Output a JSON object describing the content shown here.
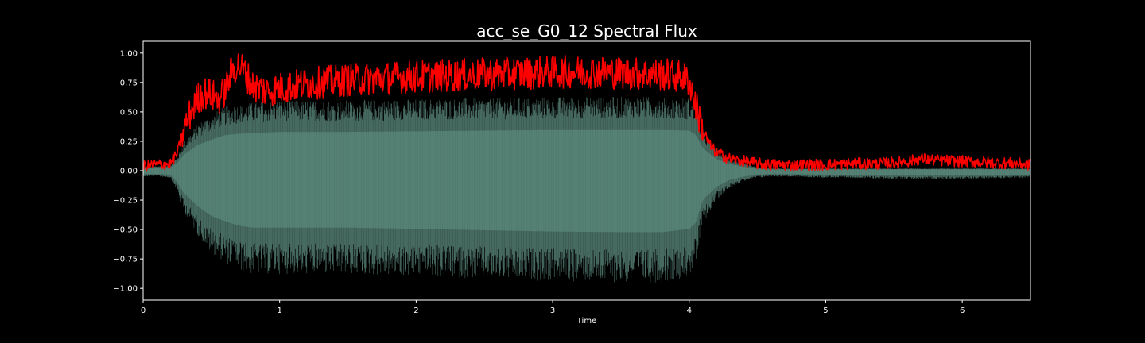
{
  "chart_data": {
    "type": "line",
    "title": "acc_se_G0_12 Spectral Flux",
    "xlabel": "Time",
    "ylabel": "",
    "xlim": [
      0,
      6.5
    ],
    "ylim": [
      -1.1,
      1.1
    ],
    "x_ticks": [
      0,
      1,
      2,
      3,
      4,
      5,
      6
    ],
    "x_tick_labels": [
      "0",
      "1",
      "2",
      "3",
      "4",
      "5",
      "6"
    ],
    "y_ticks": [
      1.0,
      0.75,
      0.5,
      0.25,
      0.0,
      -0.25,
      -0.5,
      -0.75,
      -1.0
    ],
    "y_tick_labels": [
      "1.00",
      "0.75",
      "0.50",
      "0.25",
      "0.00",
      "−0.25",
      "−0.50",
      "−0.75",
      "−1.00"
    ],
    "grid": false,
    "colors": {
      "background": "#000000",
      "waveform": "#3e5c52",
      "waveform_peaks": "#5e8c80",
      "flux": "#ff0000",
      "axes": "#ffffff"
    },
    "series": [
      {
        "kind": "waveform-envelope",
        "x": [
          0,
          0.1,
          0.2,
          0.25,
          0.3,
          0.4,
          0.5,
          0.6,
          0.7,
          0.8,
          0.9,
          1.0,
          1.2,
          1.5,
          2.0,
          2.5,
          3.0,
          3.5,
          3.8,
          4.0,
          4.05,
          4.1,
          4.2,
          4.3,
          4.4,
          4.5,
          4.6,
          5.0,
          5.5,
          6.0,
          6.5
        ],
        "y_upper": [
          0.04,
          0.04,
          0.05,
          0.12,
          0.25,
          0.4,
          0.48,
          0.55,
          0.57,
          0.58,
          0.59,
          0.6,
          0.6,
          0.6,
          0.61,
          0.62,
          0.63,
          0.63,
          0.63,
          0.62,
          0.55,
          0.35,
          0.18,
          0.1,
          0.06,
          0.03,
          0.02,
          0.02,
          0.02,
          0.02,
          0.02
        ],
        "y_lower": [
          -0.05,
          -0.05,
          -0.06,
          -0.18,
          -0.35,
          -0.55,
          -0.7,
          -0.78,
          -0.85,
          -0.88,
          -0.88,
          -0.88,
          -0.88,
          -0.88,
          -0.9,
          -0.92,
          -0.94,
          -0.95,
          -0.95,
          -0.9,
          -0.8,
          -0.45,
          -0.25,
          -0.14,
          -0.09,
          -0.06,
          -0.05,
          -0.06,
          -0.07,
          -0.07,
          -0.06
        ]
      },
      {
        "kind": "spectral-flux",
        "x": [
          0,
          0.1,
          0.2,
          0.25,
          0.3,
          0.35,
          0.4,
          0.45,
          0.5,
          0.55,
          0.6,
          0.65,
          0.7,
          0.75,
          0.8,
          0.85,
          0.9,
          1.0,
          1.1,
          1.2,
          1.3,
          1.5,
          1.8,
          2.0,
          2.3,
          2.5,
          2.8,
          3.0,
          3.3,
          3.5,
          3.8,
          3.95,
          4.0,
          4.05,
          4.1,
          4.15,
          4.2,
          4.3,
          4.4,
          4.5,
          4.6,
          4.8,
          5.0,
          5.2,
          5.4,
          5.6,
          5.7,
          5.8,
          6.0,
          6.2,
          6.4,
          6.5
        ],
        "y": [
          0.04,
          0.05,
          0.06,
          0.15,
          0.35,
          0.5,
          0.62,
          0.66,
          0.65,
          0.6,
          0.68,
          0.85,
          0.9,
          0.83,
          0.72,
          0.7,
          0.68,
          0.7,
          0.72,
          0.74,
          0.75,
          0.77,
          0.79,
          0.8,
          0.81,
          0.82,
          0.83,
          0.84,
          0.84,
          0.83,
          0.82,
          0.8,
          0.76,
          0.55,
          0.35,
          0.22,
          0.15,
          0.1,
          0.08,
          0.06,
          0.05,
          0.05,
          0.05,
          0.06,
          0.06,
          0.08,
          0.1,
          0.09,
          0.08,
          0.07,
          0.06,
          0.05
        ]
      }
    ]
  }
}
